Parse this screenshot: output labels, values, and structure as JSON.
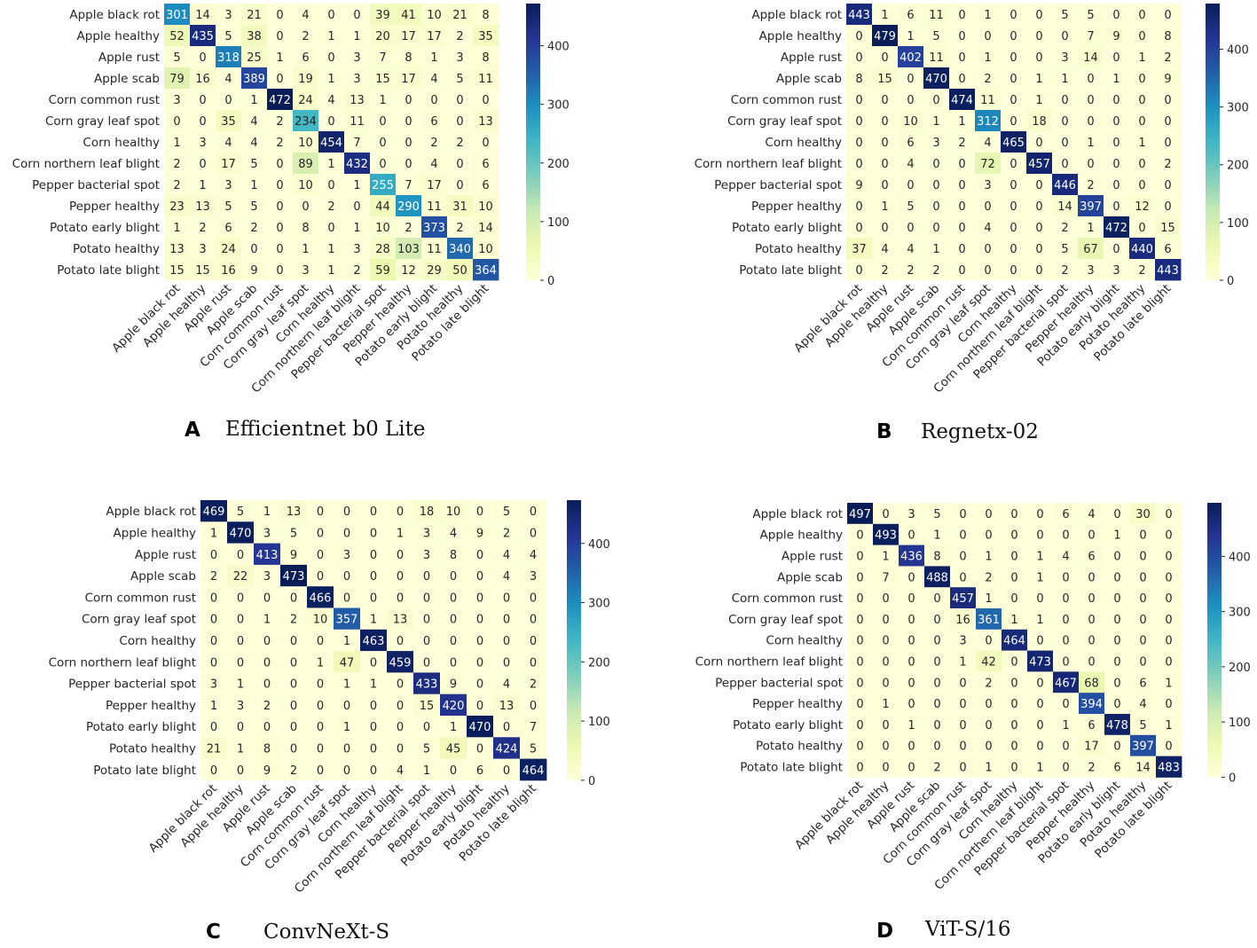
{
  "chart_data": [
    {
      "type": "heatmap",
      "panel_letter": "A",
      "title": "Efficientnet b0 Lite",
      "classes": [
        "Apple black rot",
        "Apple healthy",
        "Apple rust",
        "Apple scab",
        "Corn common rust",
        "Corn gray leaf spot",
        "Corn healthy",
        "Corn northern leaf blight",
        "Pepper bacterial spot",
        "Pepper healthy",
        "Potato early blight",
        "Potato healthy",
        "Potato late blight"
      ],
      "matrix": [
        [
          301,
          14,
          3,
          21,
          0,
          4,
          0,
          0,
          39,
          41,
          10,
          21,
          8
        ],
        [
          52,
          435,
          5,
          38,
          0,
          2,
          1,
          1,
          20,
          17,
          17,
          2,
          35
        ],
        [
          5,
          0,
          318,
          25,
          1,
          6,
          0,
          3,
          7,
          8,
          1,
          3,
          8
        ],
        [
          79,
          16,
          4,
          389,
          0,
          19,
          1,
          3,
          15,
          17,
          4,
          5,
          11
        ],
        [
          3,
          0,
          0,
          1,
          472,
          24,
          4,
          13,
          1,
          0,
          0,
          0,
          0
        ],
        [
          0,
          0,
          35,
          4,
          2,
          234,
          0,
          11,
          0,
          0,
          6,
          0,
          13
        ],
        [
          1,
          3,
          4,
          4,
          2,
          10,
          454,
          7,
          0,
          0,
          2,
          2,
          0
        ],
        [
          2,
          0,
          17,
          5,
          0,
          89,
          1,
          432,
          0,
          0,
          4,
          0,
          6
        ],
        [
          2,
          1,
          3,
          1,
          0,
          10,
          0,
          1,
          255,
          7,
          17,
          0,
          6
        ],
        [
          23,
          13,
          5,
          5,
          0,
          0,
          2,
          0,
          44,
          290,
          11,
          31,
          10
        ],
        [
          1,
          2,
          6,
          2,
          0,
          8,
          0,
          1,
          10,
          2,
          373,
          2,
          14
        ],
        [
          13,
          3,
          24,
          0,
          0,
          1,
          1,
          3,
          28,
          103,
          11,
          340,
          10
        ],
        [
          15,
          15,
          16,
          9,
          0,
          3,
          1,
          2,
          59,
          12,
          29,
          50,
          364
        ]
      ],
      "colorbar": {
        "min": 0,
        "max": 472,
        "ticks": [
          0,
          100,
          200,
          300,
          400
        ]
      }
    },
    {
      "type": "heatmap",
      "panel_letter": "B",
      "title": "Regnetx-02",
      "classes": [
        "Apple black rot",
        "Apple healthy",
        "Apple rust",
        "Apple scab",
        "Corn common rust",
        "Corn gray leaf spot",
        "Corn healthy",
        "Corn northern leaf blight",
        "Pepper bacterial spot",
        "Pepper healthy",
        "Potato early blight",
        "Potato healthy",
        "Potato late blight"
      ],
      "matrix": [
        [
          443,
          1,
          6,
          11,
          0,
          1,
          0,
          0,
          5,
          5,
          0,
          0,
          0
        ],
        [
          0,
          479,
          1,
          5,
          0,
          0,
          0,
          0,
          0,
          7,
          9,
          0,
          8
        ],
        [
          0,
          0,
          402,
          11,
          0,
          1,
          0,
          0,
          3,
          14,
          0,
          1,
          2
        ],
        [
          8,
          15,
          0,
          470,
          0,
          2,
          0,
          1,
          1,
          0,
          1,
          0,
          9
        ],
        [
          0,
          0,
          0,
          0,
          474,
          11,
          0,
          1,
          0,
          0,
          0,
          0,
          0
        ],
        [
          0,
          0,
          10,
          1,
          1,
          312,
          0,
          18,
          0,
          0,
          0,
          0,
          0
        ],
        [
          0,
          0,
          6,
          3,
          2,
          4,
          465,
          0,
          0,
          1,
          0,
          1,
          0
        ],
        [
          0,
          0,
          4,
          0,
          0,
          72,
          0,
          457,
          0,
          0,
          0,
          0,
          2
        ],
        [
          9,
          0,
          0,
          0,
          0,
          3,
          0,
          0,
          446,
          2,
          0,
          0,
          0
        ],
        [
          0,
          1,
          5,
          0,
          0,
          0,
          0,
          0,
          14,
          397,
          0,
          12,
          0
        ],
        [
          0,
          0,
          0,
          0,
          0,
          4,
          0,
          0,
          2,
          1,
          472,
          0,
          15
        ],
        [
          37,
          4,
          4,
          1,
          0,
          0,
          0,
          0,
          5,
          67,
          0,
          440,
          6
        ],
        [
          0,
          2,
          2,
          2,
          0,
          0,
          0,
          0,
          2,
          3,
          3,
          2,
          443
        ]
      ],
      "colorbar": {
        "min": 0,
        "max": 479,
        "ticks": [
          0,
          100,
          200,
          300,
          400
        ]
      }
    },
    {
      "type": "heatmap",
      "panel_letter": "C",
      "title": "ConvNeXt-S",
      "classes": [
        "Apple black rot",
        "Apple healthy",
        "Apple rust",
        "Apple scab",
        "Corn common rust",
        "Corn gray leaf spot",
        "Corn healthy",
        "Corn northern leaf blight",
        "Pepper bacterial spot",
        "Pepper healthy",
        "Potato early blight",
        "Potato healthy",
        "Potato late blight"
      ],
      "matrix": [
        [
          469,
          5,
          1,
          13,
          0,
          0,
          0,
          0,
          18,
          10,
          0,
          5,
          0
        ],
        [
          1,
          470,
          3,
          5,
          0,
          0,
          0,
          1,
          3,
          4,
          9,
          2,
          0
        ],
        [
          0,
          0,
          413,
          9,
          0,
          3,
          0,
          0,
          3,
          8,
          0,
          4,
          4
        ],
        [
          2,
          22,
          3,
          473,
          0,
          0,
          0,
          0,
          0,
          0,
          0,
          4,
          3
        ],
        [
          0,
          0,
          0,
          0,
          466,
          0,
          0,
          0,
          0,
          0,
          0,
          0,
          0
        ],
        [
          0,
          0,
          1,
          2,
          10,
          357,
          1,
          13,
          0,
          0,
          0,
          0,
          0
        ],
        [
          0,
          0,
          0,
          0,
          0,
          1,
          463,
          0,
          0,
          0,
          0,
          0,
          0
        ],
        [
          0,
          0,
          0,
          0,
          1,
          47,
          0,
          459,
          0,
          0,
          0,
          0,
          0
        ],
        [
          3,
          1,
          0,
          0,
          0,
          1,
          1,
          0,
          433,
          9,
          0,
          4,
          2
        ],
        [
          1,
          3,
          2,
          0,
          0,
          0,
          0,
          0,
          15,
          420,
          0,
          13,
          0
        ],
        [
          0,
          0,
          0,
          0,
          0,
          1,
          0,
          0,
          0,
          1,
          470,
          0,
          7
        ],
        [
          21,
          1,
          8,
          0,
          0,
          0,
          0,
          0,
          5,
          45,
          0,
          424,
          5
        ],
        [
          0,
          0,
          9,
          2,
          0,
          0,
          0,
          4,
          1,
          0,
          6,
          0,
          464
        ]
      ],
      "colorbar": {
        "min": 0,
        "max": 473,
        "ticks": [
          0,
          100,
          200,
          300,
          400
        ]
      }
    },
    {
      "type": "heatmap",
      "panel_letter": "D",
      "title": "ViT-S/16",
      "classes": [
        "Apple black rot",
        "Apple healthy",
        "Apple rust",
        "Apple scab",
        "Corn common rust",
        "Corn gray leaf spot",
        "Corn healthy",
        "Corn northern leaf blight",
        "Pepper bacterial spot",
        "Pepper healthy",
        "Potato early blight",
        "Potato healthy",
        "Potato late blight"
      ],
      "matrix": [
        [
          497,
          0,
          3,
          5,
          0,
          0,
          0,
          0,
          6,
          4,
          0,
          30,
          0
        ],
        [
          0,
          493,
          0,
          1,
          0,
          0,
          0,
          0,
          0,
          0,
          1,
          0,
          0
        ],
        [
          0,
          1,
          436,
          8,
          0,
          1,
          0,
          1,
          4,
          6,
          0,
          0,
          0
        ],
        [
          0,
          7,
          0,
          488,
          0,
          2,
          0,
          1,
          0,
          0,
          0,
          0,
          0
        ],
        [
          0,
          0,
          0,
          0,
          457,
          1,
          0,
          0,
          0,
          0,
          0,
          0,
          0
        ],
        [
          0,
          0,
          0,
          0,
          16,
          361,
          1,
          1,
          0,
          0,
          0,
          0,
          0
        ],
        [
          0,
          0,
          0,
          0,
          3,
          0,
          464,
          0,
          0,
          0,
          0,
          0,
          0
        ],
        [
          0,
          0,
          0,
          0,
          1,
          42,
          0,
          473,
          0,
          0,
          0,
          0,
          0
        ],
        [
          0,
          0,
          0,
          0,
          0,
          2,
          0,
          0,
          467,
          68,
          0,
          6,
          1
        ],
        [
          0,
          1,
          0,
          0,
          0,
          0,
          0,
          0,
          0,
          394,
          0,
          4,
          0
        ],
        [
          0,
          0,
          1,
          0,
          0,
          0,
          0,
          0,
          1,
          6,
          478,
          5,
          1
        ],
        [
          0,
          0,
          0,
          0,
          0,
          0,
          0,
          0,
          0,
          17,
          0,
          397,
          0
        ],
        [
          0,
          0,
          0,
          2,
          0,
          1,
          0,
          1,
          0,
          2,
          6,
          14,
          483
        ]
      ],
      "colorbar": {
        "min": 0,
        "max": 497,
        "ticks": [
          0,
          100,
          200,
          300,
          400
        ]
      }
    }
  ]
}
